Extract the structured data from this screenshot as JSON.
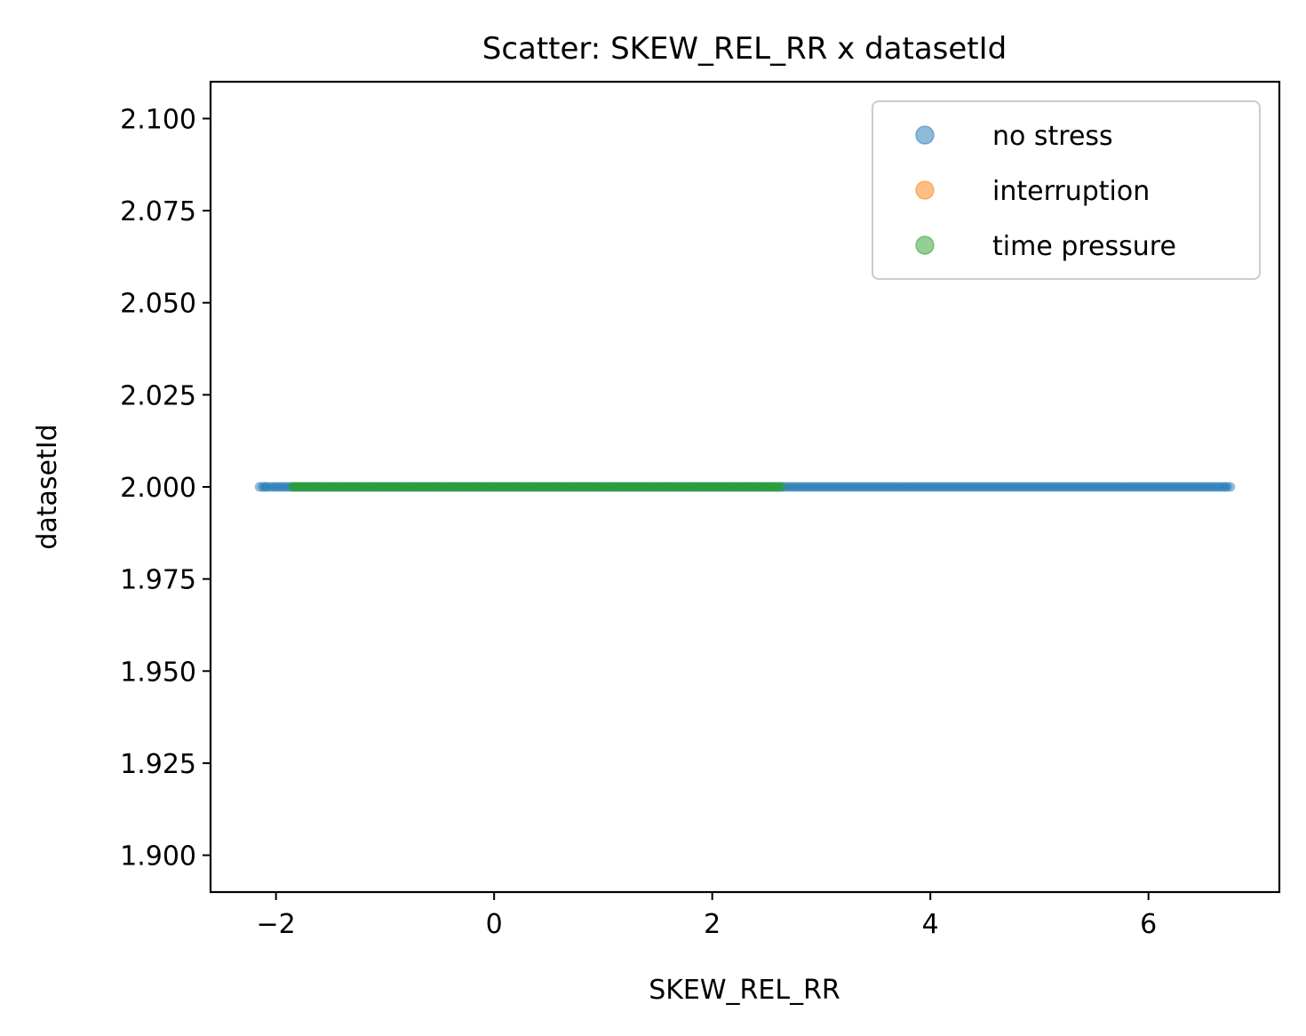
{
  "chart_data": {
    "type": "scatter",
    "title": "Scatter: SKEW_REL_RR x datasetId",
    "xlabel": "SKEW_REL_RR",
    "ylabel": "datasetId",
    "xlim": [
      -2.6,
      7.2
    ],
    "ylim": [
      1.89,
      2.11
    ],
    "xticks": [
      -2,
      0,
      2,
      4,
      6
    ],
    "xtick_labels": [
      "−2",
      "0",
      "2",
      "4",
      "6"
    ],
    "yticks": [
      1.9,
      1.925,
      1.95,
      1.975,
      2.0,
      2.025,
      2.05,
      2.075,
      2.1
    ],
    "ytick_labels": [
      "1.900",
      "1.925",
      "1.950",
      "1.975",
      "2.000",
      "2.025",
      "2.050",
      "2.075",
      "2.100"
    ],
    "grid": false,
    "legend_position": "top-right",
    "series": [
      {
        "name": "no stress",
        "color": "#1f77b4",
        "y": 2.0,
        "x": [
          -2.15,
          -2.12,
          -2.1,
          -2.08,
          -2.05,
          -2.0,
          -1.95,
          -1.9,
          -1.8,
          -1.6,
          -1.4,
          -1.2,
          -1.0,
          -0.8,
          -0.6,
          -0.4,
          -0.2,
          0.0,
          0.2,
          0.4,
          0.6,
          0.8,
          1.0,
          1.2,
          1.4,
          1.6,
          1.8,
          2.0,
          2.2,
          2.4,
          2.6,
          2.7,
          2.8,
          2.9,
          3.0,
          3.1,
          3.2,
          3.3,
          3.4,
          3.5,
          3.6,
          3.7,
          3.8,
          3.9,
          4.0,
          4.1,
          4.2,
          4.3,
          4.4,
          4.5,
          4.6,
          4.7,
          4.8,
          4.9,
          5.0,
          5.05,
          5.1,
          5.2,
          5.3,
          5.35,
          5.4,
          5.45,
          5.5,
          5.55,
          5.6,
          5.75,
          5.8,
          5.85,
          5.9,
          5.95,
          6.0,
          6.05,
          6.1,
          6.15,
          6.2,
          6.25,
          6.3,
          6.35,
          6.4,
          6.5,
          6.55,
          6.6,
          6.65,
          6.7,
          6.72,
          6.75
        ]
      },
      {
        "name": "interruption",
        "color": "#ff7f0e",
        "y": 2.0,
        "x": []
      },
      {
        "name": "time pressure",
        "color": "#2ca02c",
        "y": 2.0,
        "x": [
          -1.85,
          -1.8,
          -1.7,
          -1.6,
          -1.5,
          -1.4,
          -1.3,
          -1.2,
          -1.1,
          -1.0,
          -0.9,
          -0.8,
          -0.7,
          -0.6,
          -0.5,
          -0.4,
          -0.3,
          -0.2,
          -0.1,
          0.0,
          0.1,
          0.2,
          0.3,
          0.4,
          0.5,
          0.6,
          0.7,
          0.8,
          0.9,
          1.0,
          1.1,
          1.2,
          1.3,
          1.4,
          1.5,
          1.6,
          1.7,
          1.8,
          1.9,
          2.0,
          2.1,
          2.2,
          2.3,
          2.4,
          2.5,
          2.6,
          2.63
        ]
      }
    ]
  }
}
